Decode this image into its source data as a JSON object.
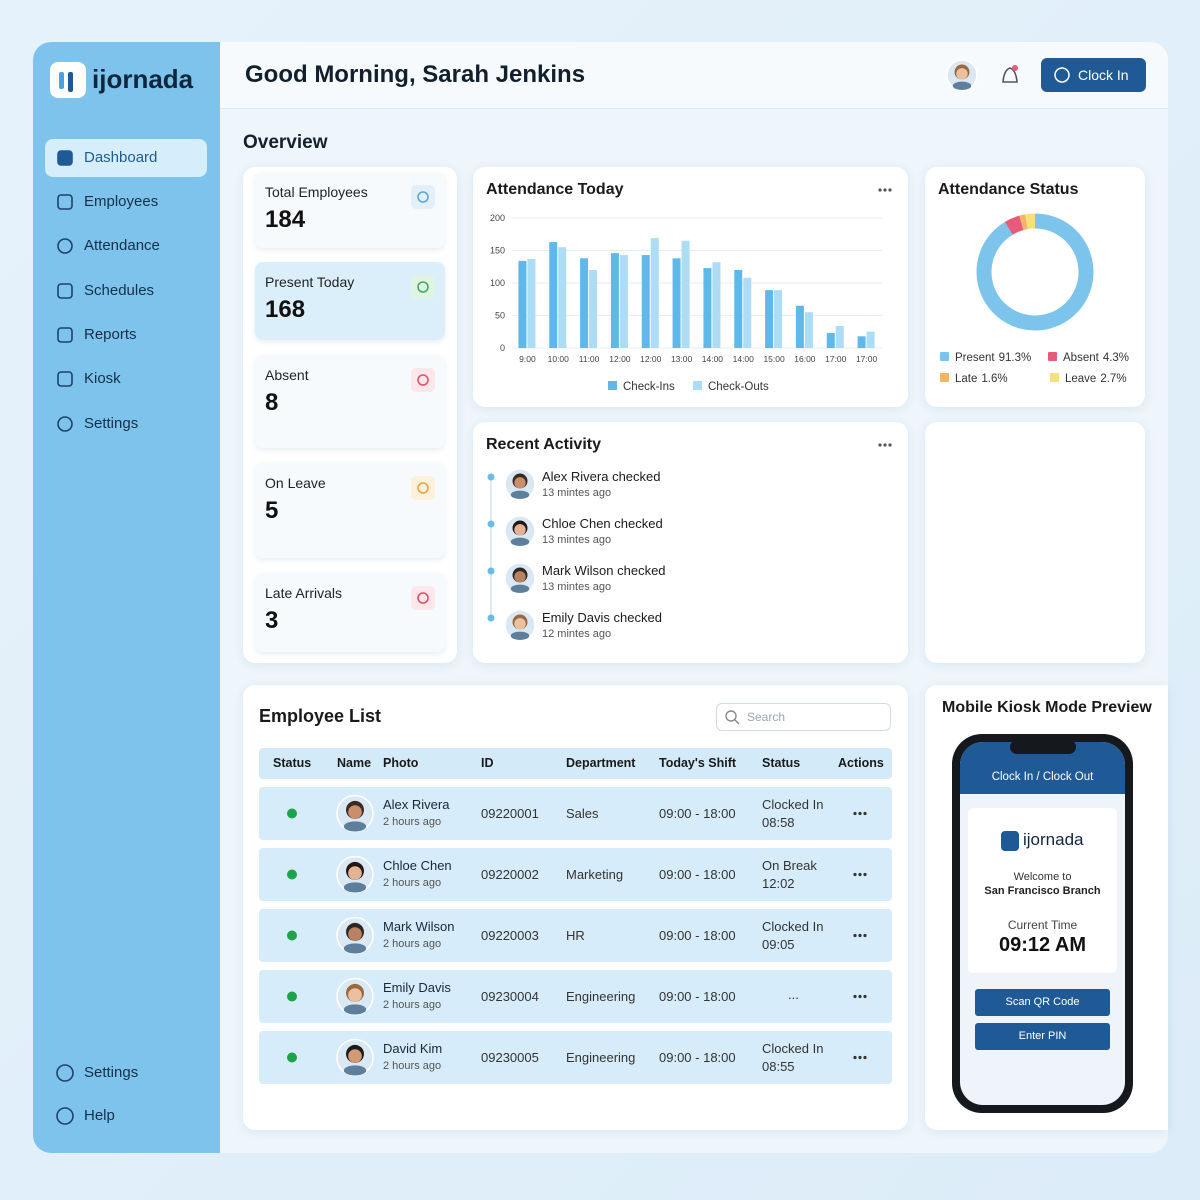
{
  "brand": "ijornada",
  "nav": {
    "items": [
      "Dashboard",
      "Employees",
      "Attendance",
      "Schedules",
      "Reports",
      "Kiosk",
      "Settings"
    ],
    "bottom": [
      "Settings",
      "Help"
    ]
  },
  "header": {
    "greeting": "Good Morning, Sarah Jenkins",
    "clock_in": "Clock In"
  },
  "overview": {
    "title": "Overview",
    "stats": [
      {
        "label": "Total Employees",
        "value": 184
      },
      {
        "label": "Present Today",
        "value": 168
      },
      {
        "label": "Absent",
        "value": 8
      },
      {
        "label": "On Leave",
        "value": 5
      },
      {
        "label": "Late Arrivals",
        "value": 3
      }
    ]
  },
  "chart_data": [
    {
      "type": "bar",
      "title": "Attendance Today",
      "categories": [
        "9:00",
        "10:00",
        "11:00",
        "12:00",
        "12:00",
        "13:00",
        "14:00",
        "14:00",
        "15:00",
        "16:00",
        "17:00",
        "17:00"
      ],
      "series": [
        {
          "name": "Check-Ins",
          "color": "#5fb8ea",
          "values": [
            134,
            163,
            138,
            146,
            143,
            138,
            123,
            120,
            89,
            65,
            23,
            18
          ]
        },
        {
          "name": "Check-Outs",
          "color": "#addcf5",
          "values": [
            137,
            155,
            120,
            143,
            169,
            165,
            132,
            108,
            89,
            55,
            34,
            25
          ]
        }
      ],
      "ylim": [
        0,
        200
      ],
      "yticks": [
        0,
        50,
        100,
        150,
        200
      ],
      "grid": true
    },
    {
      "type": "pie",
      "title": "Attendance Status",
      "categories": [
        "Present",
        "Absent",
        "Late",
        "Leave"
      ],
      "values": [
        91.3,
        4.3,
        1.6,
        2.7
      ],
      "value_labels": [
        "91.3%",
        "4.3%",
        "1.6%",
        "2.7%"
      ],
      "colors": [
        "#7cc4ec",
        "#e85a7a",
        "#f2b36b",
        "#f5e07a"
      ]
    }
  ],
  "recent_activity": {
    "title": "Recent Activity",
    "items": [
      {
        "text": "Alex Rivera checked",
        "time": "13 mintes ago"
      },
      {
        "text": "Chloe Chen checked",
        "time": "13 mintes ago"
      },
      {
        "text": "Mark Wilson checked",
        "time": "13 mintes ago"
      },
      {
        "text": "Emily Davis checked",
        "time": "12 mintes ago"
      }
    ]
  },
  "employee_list": {
    "title": "Employee List",
    "search": "Search",
    "columns": [
      "Status",
      "Name",
      "Photo",
      "ID",
      "Department",
      "Today's Shift",
      "Status",
      "Actions"
    ],
    "rows": [
      {
        "name": "Alex Rivera",
        "since": "2 hours ago",
        "id": "09220001",
        "department": "Sales",
        "shift": "09:00 - 18:00",
        "status": "Clocked In",
        "status_time": "08:58"
      },
      {
        "name": "Chloe Chen",
        "since": "2 hours ago",
        "id": "09220002",
        "department": "Marketing",
        "shift": "09:00 - 18:00",
        "status": "On Break",
        "status_time": "12:02"
      },
      {
        "name": "Mark Wilson",
        "since": "2 hours ago",
        "id": "09220003",
        "department": "HR",
        "shift": "09:00 - 18:00",
        "status": "Clocked In",
        "status_time": "09:05"
      },
      {
        "name": "Emily Davis",
        "since": "2 hours ago",
        "id": "09230004",
        "department": "Engineering",
        "shift": "09:00 - 18:00",
        "status": "..."
      },
      {
        "name": "David Kim",
        "since": "2 hours ago",
        "id": "09230005",
        "department": "Engineering",
        "shift": "09:00 - 18:00",
        "status": "Clocked In",
        "status_time": "08:55"
      }
    ]
  },
  "kiosk": {
    "title": "Mobile Kiosk Mode Preview",
    "header": "Clock In / Clock Out",
    "brand": "ijornada",
    "welcome": "Welcome to",
    "branch": "San Francisco Branch",
    "time_label": "Current Time",
    "time": "09:12 AM",
    "buttons": [
      "Scan QR Code",
      "Enter PIN"
    ]
  }
}
